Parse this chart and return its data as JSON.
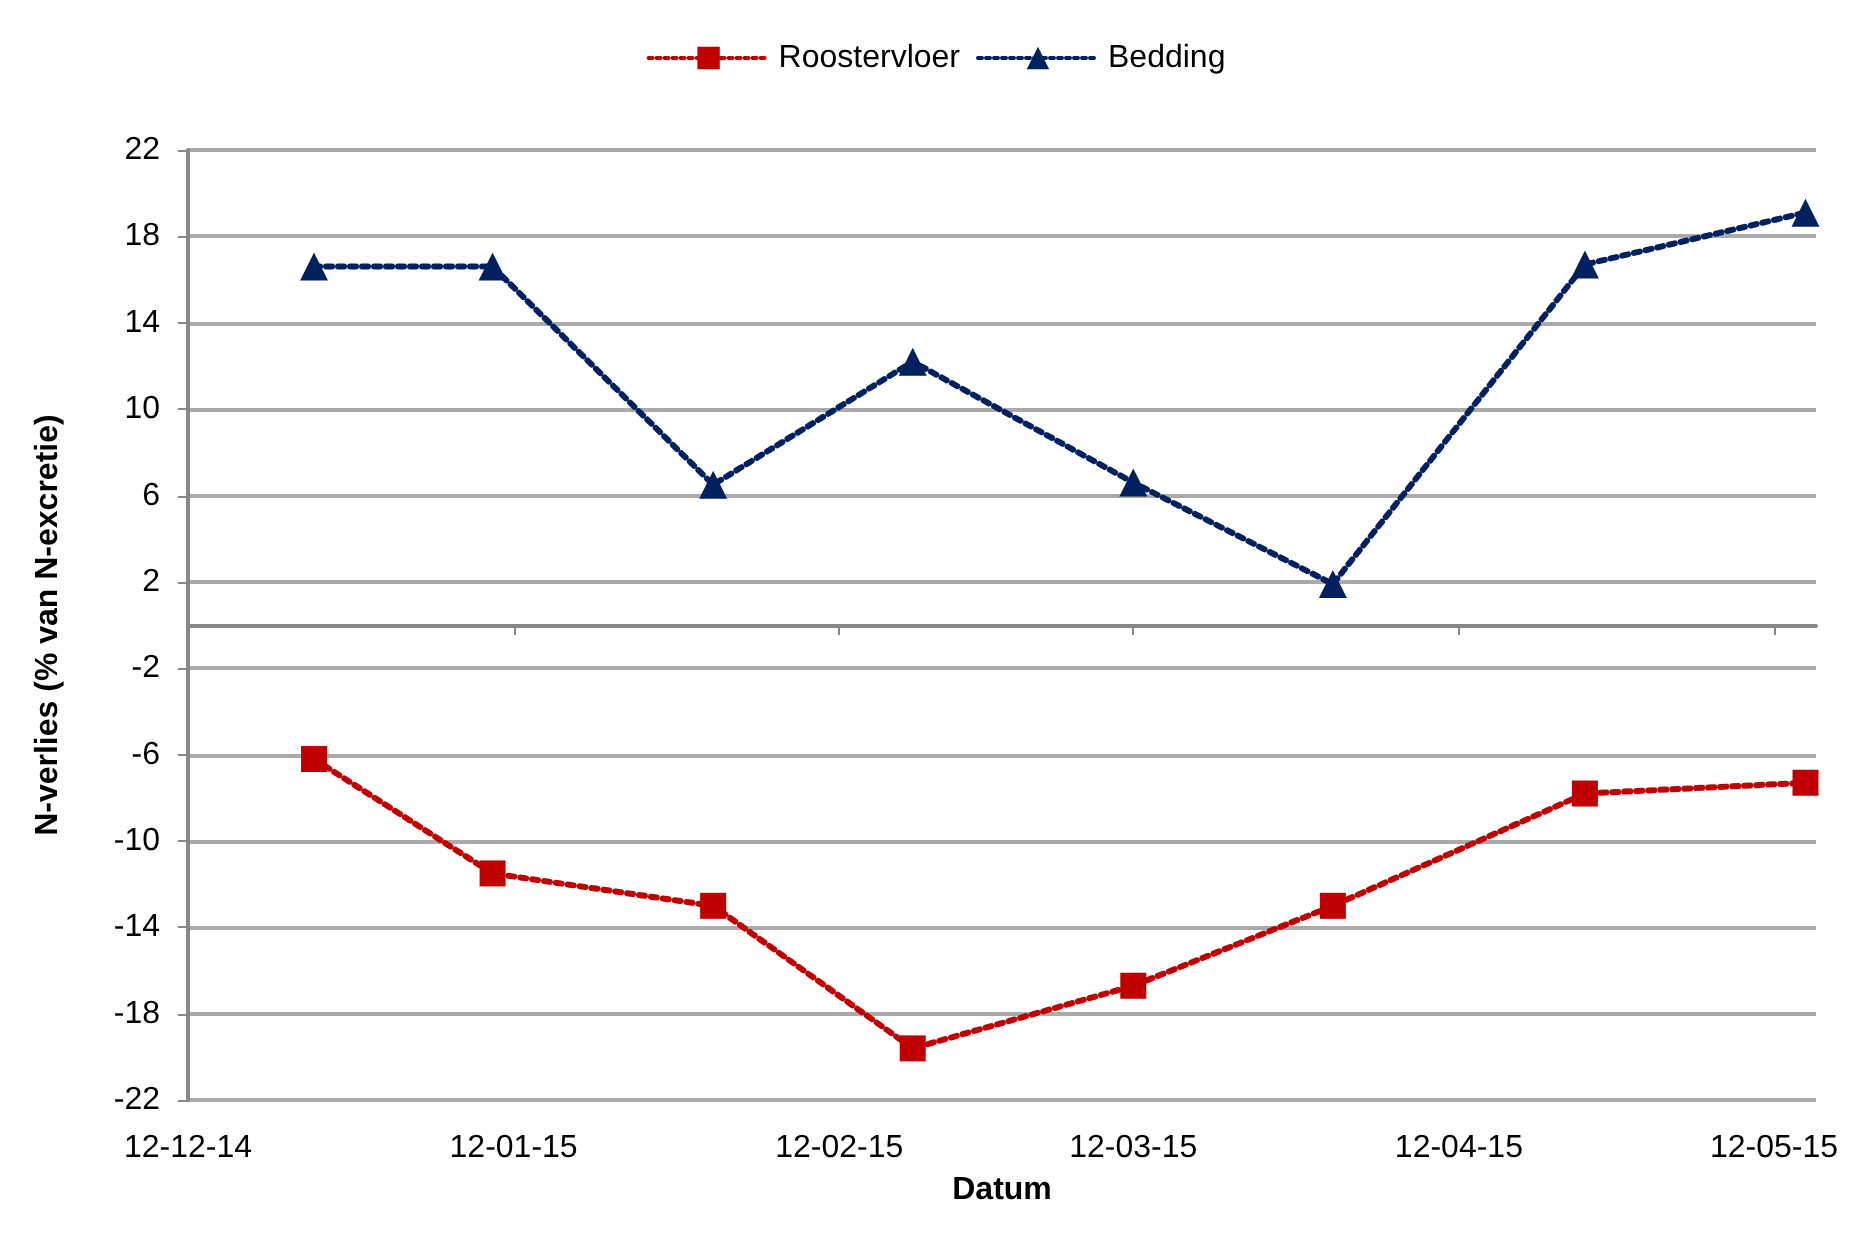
{
  "chart_data": {
    "type": "line",
    "xlabel": "Datum",
    "ylabel": "N-verlies (% van N-excretie)",
    "x": [
      "2014-12-24",
      "2015-01-10",
      "2015-01-31",
      "2015-02-19",
      "2015-03-12",
      "2015-03-31",
      "2015-04-24",
      "2015-05-15"
    ],
    "series": [
      {
        "name": "Roostervloer",
        "color": "#c00000",
        "marker": "square",
        "values": [
          -6.2,
          -11.5,
          -13.0,
          -19.6,
          -16.7,
          -13.0,
          -7.8,
          -7.3
        ]
      },
      {
        "name": "Bedding",
        "color": "#002060",
        "marker": "triangle",
        "values": [
          16.6,
          16.6,
          6.5,
          12.2,
          6.6,
          1.9,
          16.7,
          19.1
        ]
      }
    ],
    "xlim": [
      "2014-12-12",
      "2015-05-16"
    ],
    "xticks": [
      {
        "value": "2014-12-12",
        "label": "12-12-14"
      },
      {
        "value": "2015-01-12",
        "label": "12-01-15"
      },
      {
        "value": "2015-02-12",
        "label": "12-02-15"
      },
      {
        "value": "2015-03-12",
        "label": "12-03-15"
      },
      {
        "value": "2015-04-12",
        "label": "12-04-15"
      },
      {
        "value": "2015-05-12",
        "label": "12-05-15"
      }
    ],
    "ylim": [
      -22,
      22
    ],
    "yticks": [
      -22,
      -18,
      -14,
      -10,
      -6,
      -2,
      2,
      6,
      10,
      14,
      18,
      22
    ],
    "grid": "y",
    "legend": "top",
    "line_style": "dotted"
  }
}
